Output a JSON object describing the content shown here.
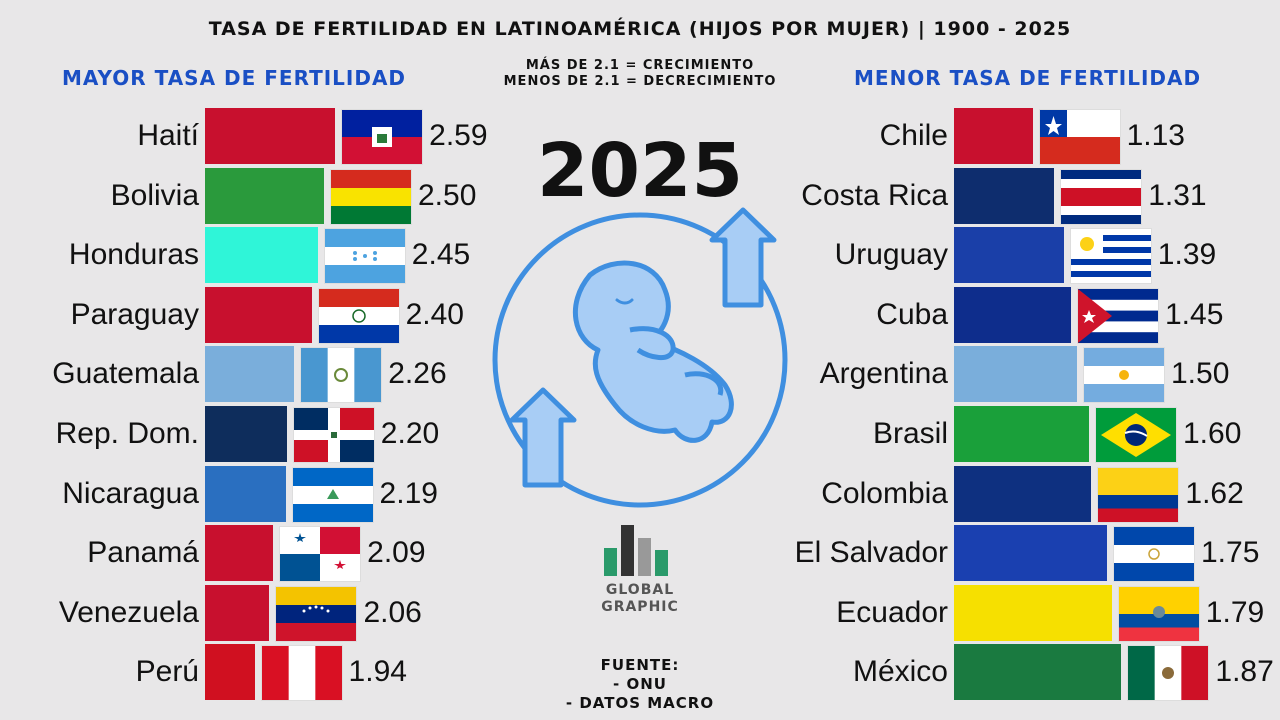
{
  "title": "TASA DE FERTILIDAD EN LATINOAMÉRICA (HIJOS POR MUJER) | 1900 - 2025",
  "left_heading": "MAYOR TASA DE FERTILIDAD",
  "right_heading": "MENOR TASA DE FERTILIDAD",
  "note_line1": "MÁS DE 2.1 = CRECIMIENTO",
  "note_line2": "MENOS DE 2.1 = DECRECIMIENTO",
  "year": "2025",
  "logo_line1": "GLOBAL",
  "logo_line2": "GRAPHIC",
  "source_line1": "FUENTE:",
  "source_line2": "- ONU",
  "source_line3": "- DATOS MACRO",
  "colors": {
    "heading_blue": "#1a4fc4",
    "background": "#e8e7e8",
    "baby_blue": "#3f8fe0"
  },
  "chart_data": [
    {
      "type": "bar",
      "title": "MAYOR TASA DE FERTILIDAD",
      "categories": [
        "Haití",
        "Bolivia",
        "Honduras",
        "Paraguay",
        "Guatemala",
        "Rep. Dom.",
        "Nicaragua",
        "Panamá",
        "Venezuela",
        "Perú"
      ],
      "values": [
        2.59,
        2.5,
        2.45,
        2.4,
        2.26,
        2.2,
        2.19,
        2.09,
        2.06,
        1.94
      ],
      "labels": [
        "2.59",
        "2.50",
        "2.45",
        "2.40",
        "2.26",
        "2.20",
        "2.19",
        "2.09",
        "2.06",
        "1.94"
      ],
      "bar_colors": [
        "#c8102e",
        "#2a9a3c",
        "#2ff5d8",
        "#c8102e",
        "#7aaedb",
        "#0e2d5c",
        "#2a6fc0",
        "#c8102e",
        "#c8102e",
        "#d01020"
      ],
      "flags": [
        "haiti-flag",
        "bolivia-flag",
        "honduras-flag",
        "paraguay-flag",
        "guatemala-flag",
        "dominican-republic-flag",
        "nicaragua-flag",
        "panama-flag",
        "venezuela-flag",
        "peru-flag"
      ]
    },
    {
      "type": "bar",
      "title": "MENOR TASA DE FERTILIDAD",
      "categories": [
        "Chile",
        "Costa Rica",
        "Uruguay",
        "Cuba",
        "Argentina",
        "Brasil",
        "Colombia",
        "El Salvador",
        "Ecuador",
        "México"
      ],
      "values": [
        1.13,
        1.31,
        1.39,
        1.45,
        1.5,
        1.6,
        1.62,
        1.75,
        1.79,
        1.87
      ],
      "labels": [
        "1.13",
        "1.31",
        "1.39",
        "1.45",
        "1.50",
        "1.60",
        "1.62",
        "1.75",
        "1.79",
        "1.87"
      ],
      "bar_colors": [
        "#c8102e",
        "#0e2d6e",
        "#1a3fa8",
        "#0e2d8c",
        "#7aaedb",
        "#1aa03a",
        "#0e3080",
        "#1a40b0",
        "#f6e000",
        "#1a7a40"
      ],
      "flags": [
        "chile-flag",
        "costa-rica-flag",
        "uruguay-flag",
        "cuba-flag",
        "argentina-flag",
        "brazil-flag",
        "colombia-flag",
        "el-salvador-flag",
        "ecuador-flag",
        "mexico-flag"
      ]
    }
  ]
}
